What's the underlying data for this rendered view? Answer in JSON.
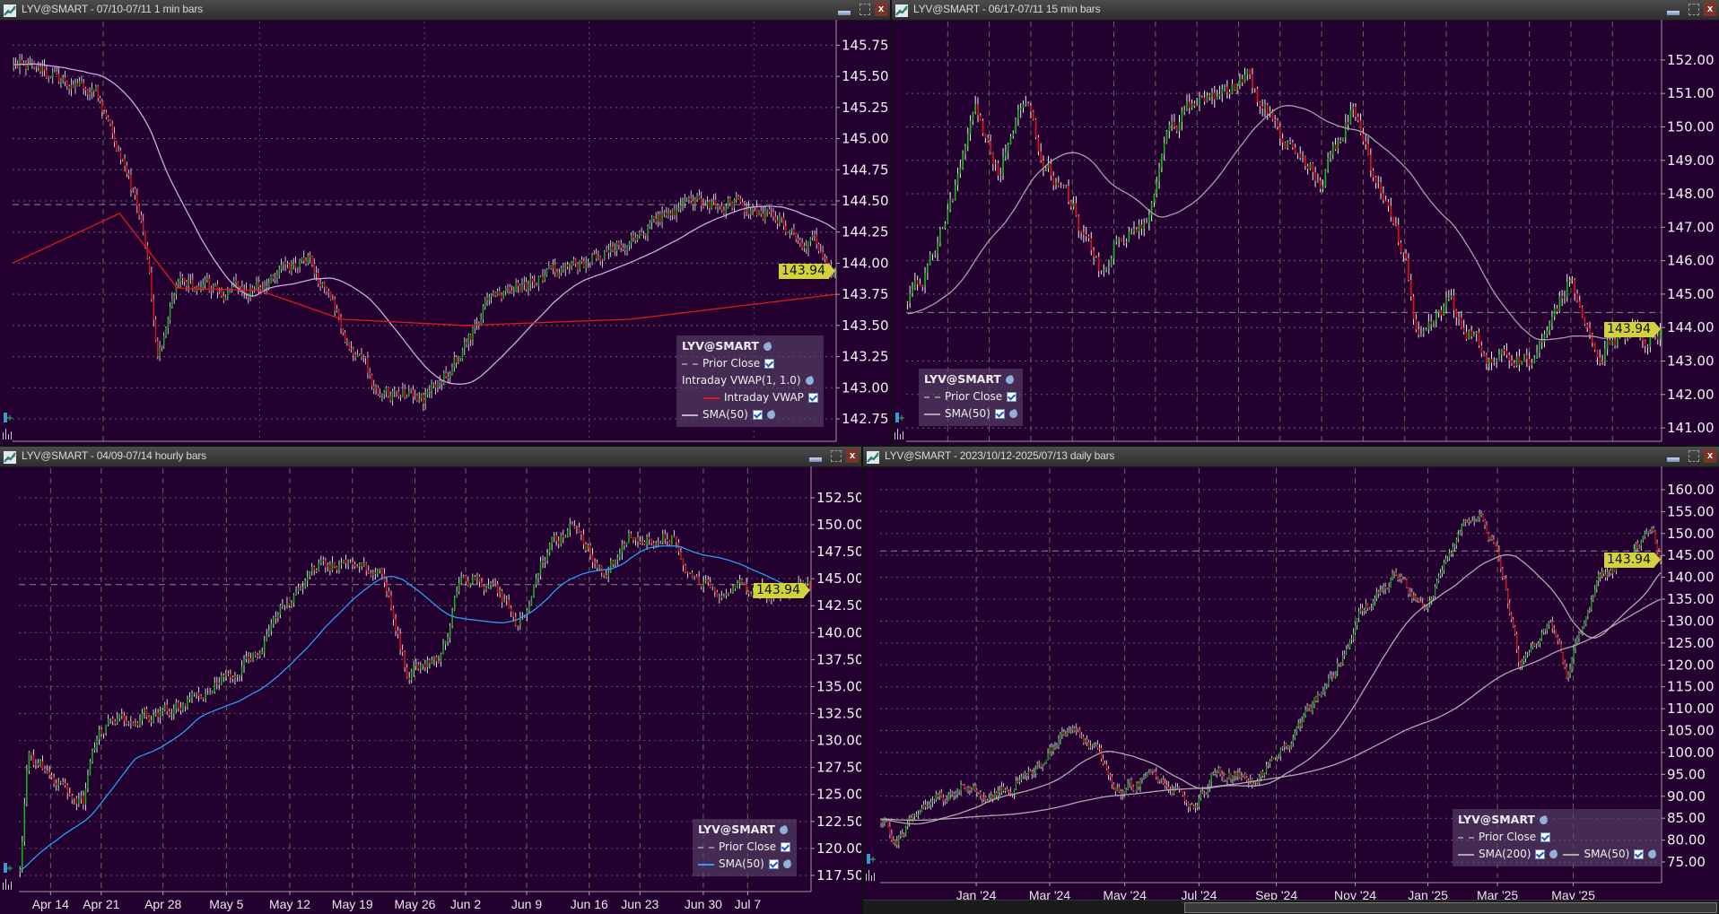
{
  "window_controls": {
    "close_label": "x"
  },
  "chart_data": [
    {
      "type": "candlestick",
      "title": "LYV@SMART - 07/10-07/11 1 min bars",
      "ylim": [
        142.57,
        145.94
      ],
      "yticks": [
        "145.75",
        "145.50",
        "145.25",
        "145.00",
        "144.75",
        "144.50",
        "144.25",
        "144.00",
        "143.75",
        "143.50",
        "143.25",
        "143.00",
        "142.75"
      ],
      "xticks": [],
      "bars": 400,
      "volatility": 0.06,
      "prior_close": 144.47,
      "last_price": "143.94",
      "anchors": [
        [
          0,
          145.6
        ],
        [
          0.05,
          145.5
        ],
        [
          0.1,
          145.35
        ],
        [
          0.13,
          144.9
        ],
        [
          0.16,
          144.2
        ],
        [
          0.175,
          143.3
        ],
        [
          0.2,
          143.9
        ],
        [
          0.25,
          143.7
        ],
        [
          0.3,
          143.85
        ],
        [
          0.36,
          144.0
        ],
        [
          0.4,
          143.5
        ],
        [
          0.44,
          143.0
        ],
        [
          0.5,
          142.9
        ],
        [
          0.55,
          143.3
        ],
        [
          0.58,
          143.75
        ],
        [
          0.65,
          143.9
        ],
        [
          0.72,
          144.1
        ],
        [
          0.8,
          144.4
        ],
        [
          0.88,
          144.5
        ],
        [
          0.95,
          144.3
        ],
        [
          1,
          143.94
        ]
      ],
      "overlays": [
        {
          "name": "SMA(50)",
          "kind": "sma",
          "period": 50,
          "color": "#c9a9e9"
        },
        {
          "name": "Intraday VWAP",
          "kind": "path",
          "color": "#e01818",
          "anchors": [
            [
              0,
              144.0
            ],
            [
              0.13,
              144.4
            ],
            [
              0.2,
              143.8
            ],
            [
              0.3,
              143.78
            ],
            [
              0.4,
              143.55
            ],
            [
              0.55,
              143.5
            ],
            [
              0.75,
              143.55
            ],
            [
              1,
              143.75
            ]
          ]
        }
      ],
      "legend": {
        "title": "LYV@SMART",
        "items": [
          {
            "label": "Prior Close",
            "swatch": "dashed",
            "color": "#8a8a8a",
            "checkbox": true,
            "wrench": false
          },
          {
            "label": "Intraday VWAP(1, 1.0)",
            "swatch": "none",
            "color": "",
            "checkbox": false,
            "wrench": true
          },
          {
            "label": "Intraday VWAP",
            "swatch": "solid",
            "color": "#e01818",
            "checkbox": true,
            "wrench": false,
            "indent": true
          },
          {
            "label": "SMA(50)",
            "swatch": "solid",
            "color": "#c9a9e9",
            "checkbox": true,
            "wrench": true
          }
        ]
      }
    },
    {
      "type": "candlestick",
      "title": "LYV@SMART - 06/17-07/11 15 min bars",
      "ylim": [
        140.6,
        153.15
      ],
      "yticks": [
        "152.00",
        "151.00",
        "150.00",
        "149.00",
        "148.00",
        "147.00",
        "146.00",
        "145.00",
        "144.00",
        "143.00",
        "142.00",
        "141.00"
      ],
      "xticks": [],
      "bars": 300,
      "volatility": 0.25,
      "prior_close": 144.45,
      "last_price": "143.94",
      "anchors": [
        [
          0,
          144.5
        ],
        [
          0.03,
          146
        ],
        [
          0.06,
          148
        ],
        [
          0.09,
          150.5
        ],
        [
          0.12,
          148.5
        ],
        [
          0.15,
          151
        ],
        [
          0.18,
          149
        ],
        [
          0.22,
          147.5
        ],
        [
          0.26,
          145.3
        ],
        [
          0.28,
          146.8
        ],
        [
          0.32,
          147.5
        ],
        [
          0.35,
          150
        ],
        [
          0.4,
          151
        ],
        [
          0.45,
          151.5
        ],
        [
          0.5,
          149.5
        ],
        [
          0.55,
          148.5
        ],
        [
          0.59,
          150.5
        ],
        [
          0.63,
          148
        ],
        [
          0.66,
          146
        ],
        [
          0.68,
          143.5
        ],
        [
          0.72,
          144.6
        ],
        [
          0.78,
          143
        ],
        [
          0.83,
          143
        ],
        [
          0.88,
          145.5
        ],
        [
          0.92,
          143.5
        ],
        [
          1,
          143.94
        ]
      ],
      "overlays": [
        {
          "name": "SMA(50)",
          "kind": "sma",
          "period": 50,
          "color": "#a8a0a8"
        }
      ],
      "legend": {
        "title": "LYV@SMART",
        "items": [
          {
            "label": "Prior Close",
            "swatch": "dashed",
            "color": "#8a8a8a",
            "checkbox": true,
            "wrench": false
          },
          {
            "label": "SMA(50)",
            "swatch": "solid",
            "color": "#a8a0a8",
            "checkbox": true,
            "wrench": true
          }
        ]
      }
    },
    {
      "type": "candlestick",
      "title": "LYV@SMART - 04/09-07/14 hourly bars",
      "ylim": [
        116.0,
        155.24
      ],
      "yticks": [
        "152.50",
        "150.00",
        "147.50",
        "145.00",
        "142.50",
        "140.00",
        "137.50",
        "135.00",
        "132.50",
        "130.00",
        "127.50",
        "125.00",
        "122.50",
        "120.00",
        "117.50"
      ],
      "xticks": [
        "Apr 14",
        "Apr 21",
        "Apr 28",
        "May 5",
        "May 12",
        "May 19",
        "May 26",
        "Jun 2",
        "Jun 9",
        "Jun 16",
        "Jun 23",
        "Jun 30",
        "Jul 7"
      ],
      "bars": 350,
      "volatility": 0.6,
      "prior_close": 144.45,
      "last_price": "143.94",
      "anchors": [
        [
          0,
          118
        ],
        [
          0.01,
          128
        ],
        [
          0.04,
          127
        ],
        [
          0.08,
          124
        ],
        [
          0.1,
          131
        ],
        [
          0.15,
          132
        ],
        [
          0.2,
          133
        ],
        [
          0.25,
          136
        ],
        [
          0.3,
          138
        ],
        [
          0.33,
          142
        ],
        [
          0.38,
          146
        ],
        [
          0.42,
          147
        ],
        [
          0.46,
          145
        ],
        [
          0.49,
          136
        ],
        [
          0.53,
          138
        ],
        [
          0.56,
          145
        ],
        [
          0.6,
          145
        ],
        [
          0.63,
          140
        ],
        [
          0.66,
          147
        ],
        [
          0.7,
          150
        ],
        [
          0.74,
          146
        ],
        [
          0.78,
          149.5
        ],
        [
          0.83,
          149
        ],
        [
          0.86,
          144
        ],
        [
          0.9,
          144
        ],
        [
          1,
          143.94
        ]
      ],
      "overlays": [
        {
          "name": "SMA(50)",
          "kind": "sma",
          "period": 50,
          "color": "#2a9df4"
        }
      ],
      "legend": {
        "title": "LYV@SMART",
        "items": [
          {
            "label": "Prior Close",
            "swatch": "dashed",
            "color": "#8a8a8a",
            "checkbox": true,
            "wrench": false
          },
          {
            "label": "SMA(50)",
            "swatch": "solid",
            "color": "#2a9df4",
            "checkbox": true,
            "wrench": true
          }
        ]
      }
    },
    {
      "type": "candlestick",
      "title": "LYV@SMART - 2023/10/12-2025/07/13 daily bars",
      "ylim": [
        70.3,
        164.9
      ],
      "yticks": [
        "160.00",
        "155.00",
        "150.00",
        "145.00",
        "140.00",
        "135.00",
        "130.00",
        "125.00",
        "120.00",
        "115.00",
        "110.00",
        "105.00",
        "100.00",
        "95.00",
        "90.00",
        "85.00",
        "80.00",
        "75.00"
      ],
      "xticks": [
        "Jan '24",
        "Mar '24",
        "May '24",
        "Jul '24",
        "Sep '24",
        "Nov '24",
        "Jan '25",
        "Mar '25",
        "May '25"
      ],
      "bars": 440,
      "volatility": 1.2,
      "prior_close": 146.0,
      "last_price": "143.94",
      "anchors": [
        [
          0,
          85
        ],
        [
          0.02,
          80
        ],
        [
          0.05,
          88
        ],
        [
          0.1,
          92
        ],
        [
          0.15,
          90
        ],
        [
          0.2,
          97
        ],
        [
          0.25,
          105
        ],
        [
          0.28,
          99
        ],
        [
          0.3,
          90
        ],
        [
          0.35,
          95
        ],
        [
          0.4,
          88
        ],
        [
          0.43,
          96
        ],
        [
          0.48,
          93
        ],
        [
          0.52,
          102
        ],
        [
          0.58,
          118
        ],
        [
          0.62,
          133
        ],
        [
          0.66,
          140
        ],
        [
          0.7,
          132
        ],
        [
          0.74,
          150
        ],
        [
          0.77,
          155
        ],
        [
          0.8,
          140
        ],
        [
          0.82,
          120
        ],
        [
          0.86,
          130
        ],
        [
          0.88,
          118
        ],
        [
          0.92,
          140
        ],
        [
          0.96,
          145
        ],
        [
          0.99,
          150
        ],
        [
          1,
          143.94
        ]
      ],
      "overlays": [
        {
          "name": "SMA(200)",
          "kind": "sma",
          "period": 200,
          "color": "#b0a8b0"
        },
        {
          "name": "SMA(50)",
          "kind": "sma",
          "period": 50,
          "color": "#b0a8b0"
        }
      ],
      "legend": {
        "title": "LYV@SMART",
        "items": [
          {
            "label": "Prior Close",
            "swatch": "dashed",
            "color": "#8a8a8a",
            "checkbox": true,
            "wrench": false
          },
          {
            "label": "SMA(200)",
            "swatch": "solid",
            "color": "#b0a8b0",
            "checkbox": true,
            "wrench": true
          },
          {
            "label": "SMA(50)",
            "swatch": "solid",
            "color": "#b0a8b0",
            "checkbox": true,
            "wrench": true,
            "inline": true
          }
        ]
      }
    }
  ]
}
